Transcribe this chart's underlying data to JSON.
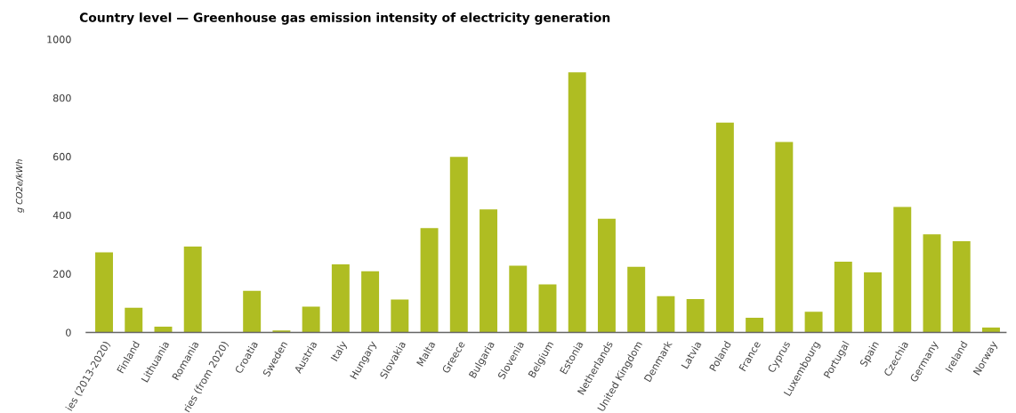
{
  "chart_data": {
    "type": "bar",
    "title": "Country level — Greenhouse gas emission intensity of electricity generation",
    "ylabel": "g CO2e/kWh",
    "categories": [
      "ies (2013-2020)",
      "Finland",
      "Lithuania",
      "Romania",
      "ries (from 2020)",
      "Croatia",
      "Sweden",
      "Austria",
      "Italy",
      "Hungary",
      "Slovakia",
      "Malta",
      "Greece",
      "Bulgaria",
      "Slovenia",
      "Belgium",
      "Estonia",
      "Netherlands",
      "United Kingdom",
      "Denmark",
      "Latvia",
      "Poland",
      "France",
      "Cyprus",
      "Luxembourg",
      "Portugal",
      "Spain",
      "Czechia",
      "Germany",
      "Ireland",
      "Norway"
    ],
    "values": [
      273,
      84,
      20,
      293,
      null,
      142,
      7,
      88,
      232,
      209,
      112,
      356,
      599,
      420,
      228,
      164,
      887,
      388,
      224,
      124,
      114,
      716,
      50,
      650,
      71,
      241,
      205,
      428,
      335,
      311,
      17
    ],
    "color": "#afbd22",
    "ylim": [
      0,
      1000
    ],
    "yticks": [
      0,
      200,
      400,
      600,
      800,
      1000
    ],
    "grid": false,
    "legend": false
  }
}
